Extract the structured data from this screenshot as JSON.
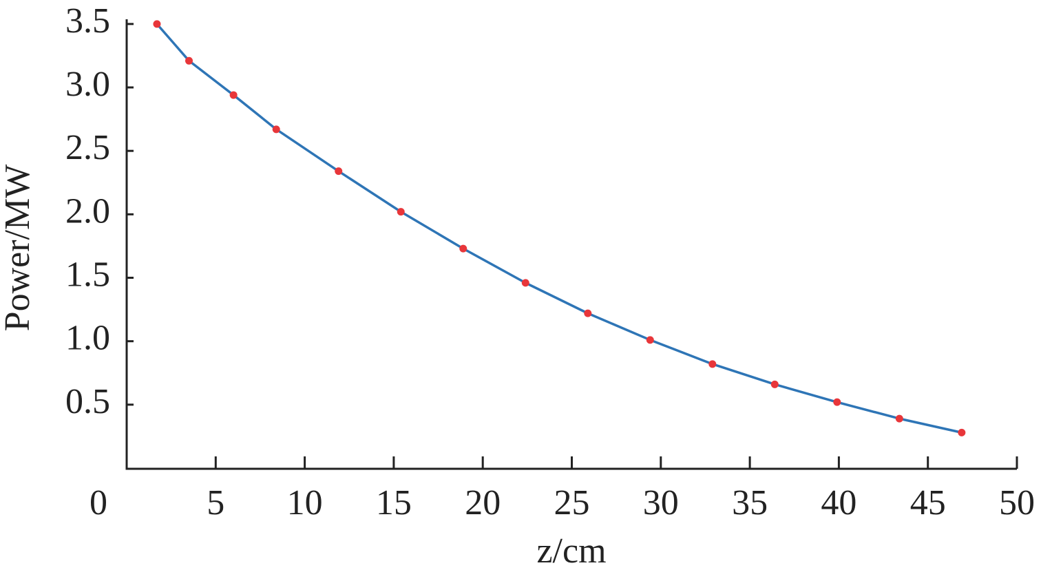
{
  "chart_data": {
    "type": "line",
    "x_label": "z/cm",
    "y_label": "Power/MW",
    "series": [
      {
        "color": "#2e75b6",
        "marker_color": "#e8363a",
        "x": [
          1.7,
          3.5,
          6,
          8.4,
          11.9,
          15.4,
          18.9,
          22.4,
          25.9,
          29.4,
          32.9,
          36.4,
          39.9,
          43.4,
          46.9
        ],
        "values": [
          3.5,
          3.21,
          2.94,
          2.67,
          2.34,
          2.02,
          1.73,
          1.46,
          1.22,
          1.01,
          0.82,
          0.66,
          0.52,
          0.39,
          0.28
        ]
      }
    ],
    "xlim": [
      0,
      50
    ],
    "xticks": [
      0,
      5,
      10,
      15,
      20,
      25,
      30,
      35,
      40,
      45,
      50
    ],
    "ylim": [
      0,
      3.5
    ],
    "yticks": [
      {
        "value": 0.5,
        "label": "0.5"
      },
      {
        "value": 1,
        "label": "1.0"
      },
      {
        "value": 1.5,
        "label": "1.5"
      },
      {
        "value": 2,
        "label": "2.0"
      },
      {
        "value": 2.5,
        "label": "2.5"
      },
      {
        "value": 3,
        "label": "3.0"
      },
      {
        "value": 3.5,
        "label": "3.5"
      }
    ],
    "grid": false
  }
}
